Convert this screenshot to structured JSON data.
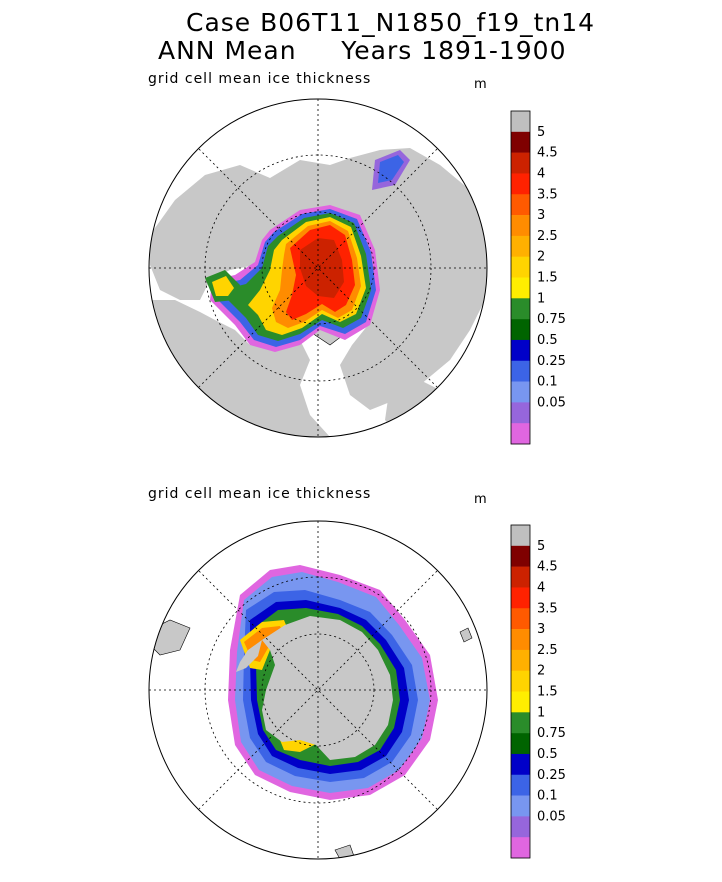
{
  "header": {
    "line1": "Case B06T11_N1850_f19_tn14",
    "line2": "ANN Mean     Years 1891-1900"
  },
  "panels": [
    {
      "id": "north",
      "title": "grid cell mean ice thickness",
      "unit": "m"
    },
    {
      "id": "south",
      "title": "grid cell mean ice thickness",
      "unit": "m"
    }
  ],
  "legend": {
    "labels": [
      "5",
      "4.5",
      "4",
      "3.5",
      "3",
      "2.5",
      "2",
      "1.5",
      "1",
      "0.75",
      "0.5",
      "0.25",
      "0.1",
      "0.05"
    ],
    "colors": [
      "#bfbfbf",
      "#7f0000",
      "#cc2200",
      "#ff2200",
      "#ff5a00",
      "#ff8c00",
      "#ffb000",
      "#ffd400",
      "#ffee00",
      "#2a8c2a",
      "#006400",
      "#0000c8",
      "#3c64e6",
      "#7896f0",
      "#9666dc",
      "#e066e0"
    ]
  },
  "colors": {
    "land": "#c8c8c8",
    "ocean": "#ffffff",
    "ice_edge": "#e066e0"
  }
}
